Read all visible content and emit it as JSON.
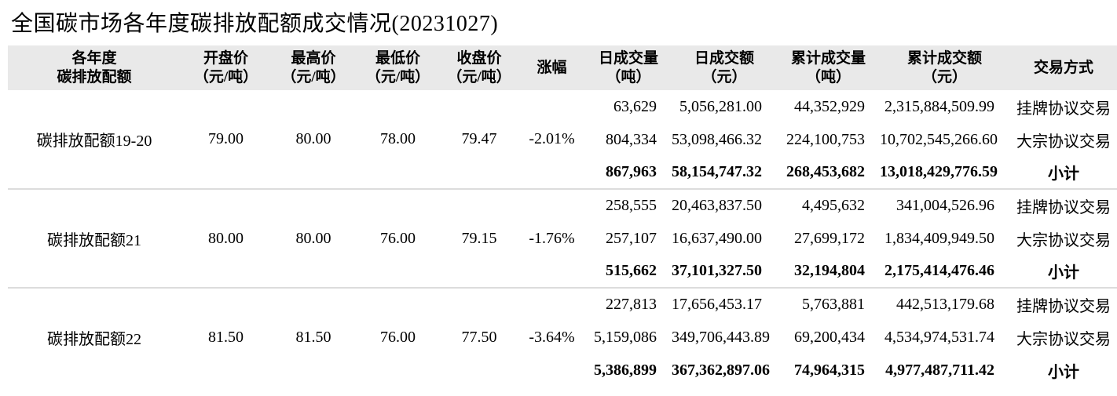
{
  "title": "全国碳市场各年度碳排放配额成交情况(20231027)",
  "colors": {
    "header_bg": "#e9e9e9",
    "separator": "#dcdcdc",
    "text": "#000000"
  },
  "table": {
    "columns": [
      {
        "key": "year",
        "line1": "各年度",
        "line2": "碳排放配额"
      },
      {
        "key": "open",
        "line1": "开盘价",
        "line2": "（元/吨）"
      },
      {
        "key": "high",
        "line1": "最高价",
        "line2": "（元/吨）"
      },
      {
        "key": "low",
        "line1": "最低价",
        "line2": "（元/吨）"
      },
      {
        "key": "close",
        "line1": "收盘价",
        "line2": "（元/吨）"
      },
      {
        "key": "change",
        "line1": "涨幅",
        "line2": ""
      },
      {
        "key": "daily_volume",
        "line1": "日成交量",
        "line2": "（吨）"
      },
      {
        "key": "daily_amount",
        "line1": "日成交额",
        "line2": "（元）"
      },
      {
        "key": "cum_volume",
        "line1": "累计成交量",
        "line2": "（吨）"
      },
      {
        "key": "cum_amount",
        "line1": "累计成交额",
        "line2": "（元）"
      },
      {
        "key": "method",
        "line1": "交易方式",
        "line2": ""
      }
    ],
    "groups": [
      {
        "name": "碳排放配额19-20",
        "open": "79.00",
        "high": "80.00",
        "low": "78.00",
        "close": "79.47",
        "change": "-2.01%",
        "rows": [
          {
            "daily_volume": "63,629",
            "daily_amount": "5,056,281.00",
            "cum_volume": "44,352,929",
            "cum_amount": "2,315,884,509.99",
            "method": "挂牌协议交易",
            "subtotal": false
          },
          {
            "daily_volume": "804,334",
            "daily_amount": "53,098,466.32",
            "cum_volume": "224,100,753",
            "cum_amount": "10,702,545,266.60",
            "method": "大宗协议交易",
            "subtotal": false
          },
          {
            "daily_volume": "867,963",
            "daily_amount": "58,154,747.32",
            "cum_volume": "268,453,682",
            "cum_amount": "13,018,429,776.59",
            "method": "小计",
            "subtotal": true
          }
        ]
      },
      {
        "name": "碳排放配额21",
        "open": "80.00",
        "high": "80.00",
        "low": "76.00",
        "close": "79.15",
        "change": "-1.76%",
        "rows": [
          {
            "daily_volume": "258,555",
            "daily_amount": "20,463,837.50",
            "cum_volume": "4,495,632",
            "cum_amount": "341,004,526.96",
            "method": "挂牌协议交易",
            "subtotal": false
          },
          {
            "daily_volume": "257,107",
            "daily_amount": "16,637,490.00",
            "cum_volume": "27,699,172",
            "cum_amount": "1,834,409,949.50",
            "method": "大宗协议交易",
            "subtotal": false
          },
          {
            "daily_volume": "515,662",
            "daily_amount": "37,101,327.50",
            "cum_volume": "32,194,804",
            "cum_amount": "2,175,414,476.46",
            "method": "小计",
            "subtotal": true
          }
        ]
      },
      {
        "name": "碳排放配额22",
        "open": "81.50",
        "high": "81.50",
        "low": "76.00",
        "close": "77.50",
        "change": "-3.64%",
        "rows": [
          {
            "daily_volume": "227,813",
            "daily_amount": "17,656,453.17",
            "cum_volume": "5,763,881",
            "cum_amount": "442,513,179.68",
            "method": "挂牌协议交易",
            "subtotal": false
          },
          {
            "daily_volume": "5,159,086",
            "daily_amount": "349,706,443.89",
            "cum_volume": "69,200,434",
            "cum_amount": "4,534,974,531.74",
            "method": "大宗协议交易",
            "subtotal": false
          },
          {
            "daily_volume": "5,386,899",
            "daily_amount": "367,362,897.06",
            "cum_volume": "74,964,315",
            "cum_amount": "4,977,487,711.42",
            "method": "小计",
            "subtotal": true
          }
        ]
      }
    ]
  }
}
